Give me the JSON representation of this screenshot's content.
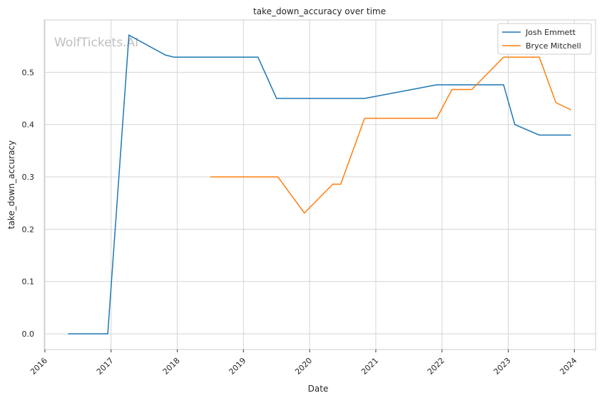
{
  "chart_data": {
    "type": "line",
    "title": "take_down_accuracy over time",
    "xlabel": "Date",
    "ylabel": "take_down_accuracy",
    "watermark": "WolfTickets.AI",
    "xlim": [
      2015.99,
      2024.32
    ],
    "ylim": [
      -0.03,
      0.6
    ],
    "xticks": [
      2016,
      2017,
      2018,
      2019,
      2020,
      2021,
      2022,
      2023,
      2024
    ],
    "xtick_labels": [
      "2016",
      "2017",
      "2018",
      "2019",
      "2020",
      "2021",
      "2022",
      "2023",
      "2024"
    ],
    "yticks": [
      0,
      0.1,
      0.2,
      0.3,
      0.4,
      0.5
    ],
    "ytick_labels": [
      "0.0",
      "0.1",
      "0.2",
      "0.3",
      "0.4",
      "0.5"
    ],
    "grid": true,
    "legend_position": "top-right",
    "series": [
      {
        "name": "Josh Emmett",
        "color": "#1f77b4",
        "x": [
          2016.35,
          2016.95,
          2017.27,
          2017.82,
          2017.95,
          2019.22,
          2019.5,
          2020.83,
          2021.92,
          2022.93,
          2023.1,
          2023.47,
          2023.95
        ],
        "y": [
          0,
          0,
          0.571,
          0.533,
          0.529,
          0.529,
          0.45,
          0.45,
          0.476,
          0.476,
          0.4,
          0.38,
          0.38
        ]
      },
      {
        "name": "Bryce Mitchell",
        "color": "#ff7f0e",
        "x": [
          2018.5,
          2019.52,
          2019.92,
          2020.35,
          2020.47,
          2020.83,
          2021.92,
          2022.15,
          2022.45,
          2022.93,
          2023.47,
          2023.72,
          2023.95
        ],
        "y": [
          0.3,
          0.3,
          0.231,
          0.286,
          0.286,
          0.412,
          0.412,
          0.467,
          0.467,
          0.529,
          0.529,
          0.442,
          0.428
        ]
      }
    ]
  }
}
